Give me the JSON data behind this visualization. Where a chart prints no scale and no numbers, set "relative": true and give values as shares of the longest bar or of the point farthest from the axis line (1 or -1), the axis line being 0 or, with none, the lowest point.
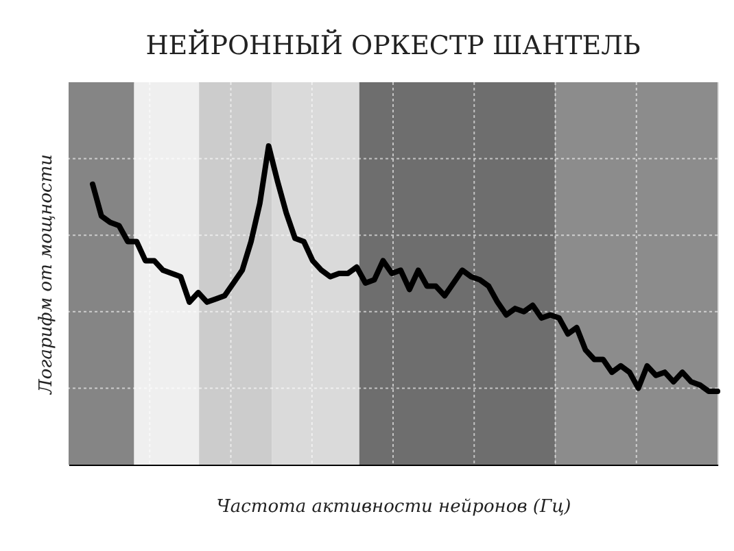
{
  "chart_data": {
    "type": "line",
    "title": "НЕЙРОННЫЙ ОРКЕСТР ШАНТЕЛЬ",
    "xlabel": "Частота активности нейронов (Гц)",
    "ylabel": "Логарифм от мощности",
    "relative": true,
    "grid": true,
    "line_style": "solid",
    "categories": [
      null,
      null,
      null,
      null,
      null,
      null,
      null,
      null,
      null,
      null,
      null,
      null,
      null,
      null,
      null,
      null,
      null,
      null,
      null,
      null,
      null,
      null,
      null,
      null,
      null,
      null,
      null,
      null,
      null,
      null,
      null,
      null,
      null,
      null,
      null,
      null,
      null,
      null,
      null,
      null,
      null,
      null,
      null,
      null,
      null,
      null,
      null,
      null,
      null,
      null,
      null,
      null,
      null,
      null,
      null,
      null,
      null,
      null,
      null,
      null,
      null,
      null,
      null,
      null,
      null,
      null,
      null,
      null,
      null,
      null,
      null,
      null
    ],
    "series": [
      {
        "color": "#000000",
        "values": [
          0.88,
          0.78,
          0.76,
          0.75,
          0.7,
          0.7,
          0.64,
          0.64,
          0.61,
          0.6,
          0.59,
          0.51,
          0.54,
          0.51,
          0.52,
          0.53,
          0.57,
          0.61,
          0.7,
          0.82,
          1.0,
          0.89,
          0.79,
          0.71,
          0.7,
          0.64,
          0.61,
          0.59,
          0.6,
          0.6,
          0.62,
          0.57,
          0.58,
          0.64,
          0.6,
          0.61,
          0.55,
          0.61,
          0.56,
          0.56,
          0.53,
          0.57,
          0.61,
          0.59,
          0.58,
          0.56,
          0.51,
          0.47,
          0.49,
          0.48,
          0.5,
          0.46,
          0.47,
          0.46,
          0.41,
          0.43,
          0.36,
          0.33,
          0.33,
          0.29,
          0.31,
          0.29,
          0.24,
          0.31,
          0.28,
          0.29,
          0.26,
          0.29,
          0.26,
          0.25,
          0.23,
          0.23
        ]
      }
    ]
  }
}
